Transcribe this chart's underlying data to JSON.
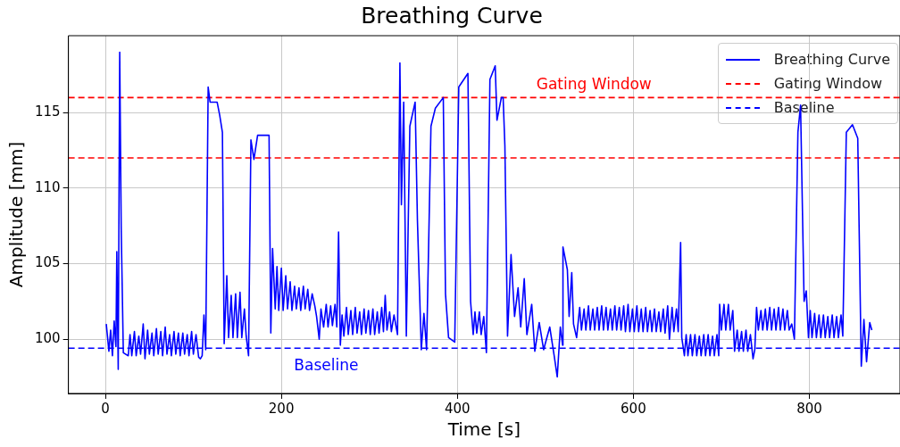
{
  "chart_data": {
    "type": "line",
    "title": "Breathing Curve",
    "xlabel": "Time [s]",
    "ylabel": "Amplitude [mm]",
    "xlim": [
      -42,
      903
    ],
    "ylim": [
      96.4,
      120.1
    ],
    "xticks": [
      0,
      200,
      400,
      600,
      800
    ],
    "yticks": [
      100,
      105,
      110,
      115
    ],
    "grid": true,
    "legend": "top right",
    "line_style": "solid",
    "series": [
      {
        "name": "Breathing Curve",
        "color": "#0000ff",
        "x": [
          1,
          4,
          6,
          8,
          10,
          12,
          13,
          14.6,
          16.3,
          18,
          20.4,
          26,
          28,
          30,
          33,
          35,
          38,
          40,
          43,
          45,
          48,
          50,
          53,
          55,
          58,
          60,
          63,
          65,
          68,
          70,
          73,
          75,
          78,
          80,
          83,
          85,
          88,
          90,
          93,
          95,
          98,
          100,
          103,
          106,
          108,
          110,
          112,
          114,
          116.8,
          119,
          127,
          130,
          133,
          135,
          138,
          140,
          143,
          145,
          148,
          150,
          153,
          155,
          158,
          160,
          162.7,
          165.4,
          168.8,
          173,
          186,
          188,
          190,
          193,
          195,
          197,
          200,
          202,
          205,
          207,
          210,
          212,
          215,
          217,
          220,
          222,
          225,
          227,
          230,
          232,
          235,
          238,
          240,
          243,
          245,
          248,
          251,
          253,
          256,
          258,
          261,
          263,
          265,
          267,
          269,
          271,
          274,
          276,
          279,
          281,
          284,
          286,
          289,
          291,
          294,
          296,
          299,
          301,
          304,
          306,
          309,
          311,
          314,
          316,
          318,
          320,
          323,
          325,
          328,
          332,
          334.7,
          336.4,
          339,
          342,
          346,
          352,
          354.6,
          359,
          362,
          365,
          370,
          375,
          384,
          386.5,
          390,
          397,
          401.6,
          412,
          415,
          418,
          420,
          422,
          425,
          427,
          430,
          433,
          437,
          443,
          445,
          450,
          452,
          454,
          457,
          461,
          465,
          469,
          472,
          476,
          479,
          484.5,
          488,
          493,
          498,
          505,
          510,
          513.5,
          517,
          519.6,
          520,
          525,
          527,
          530,
          532,
          535.5,
          539,
          541,
          544,
          546,
          549,
          551,
          554,
          556,
          559,
          561,
          564,
          566,
          569,
          571,
          574,
          576,
          579,
          581,
          584,
          586,
          589,
          591,
          594,
          596,
          599,
          601,
          604,
          606,
          609,
          611,
          614,
          616,
          619,
          621,
          624,
          626,
          629,
          631,
          634,
          636,
          639,
          641,
          644,
          646,
          649,
          651,
          653.7,
          655,
          658,
          660,
          662,
          665,
          667,
          670,
          672,
          675,
          677,
          680,
          682,
          685,
          687,
          690,
          692,
          695,
          697,
          698,
          700,
          703,
          705,
          708,
          710,
          713,
          715,
          718,
          720,
          723,
          725,
          728,
          730,
          733,
          736,
          738,
          740,
          742,
          745,
          747,
          750,
          752,
          755,
          757,
          760,
          762,
          765,
          767,
          770,
          772,
          775,
          777,
          780,
          783,
          787,
          790,
          794,
          796.5,
          799,
          801,
          803,
          806,
          808,
          811,
          813,
          816,
          818,
          821,
          823,
          826,
          828,
          831,
          833,
          836,
          838,
          842,
          849,
          855,
          859,
          862,
          865,
          868.6,
          871
        ],
        "values": [
          101.0,
          99.2,
          100.6,
          98.9,
          101.2,
          99.5,
          105.8,
          98.0,
          119.0,
          107.3,
          99.1,
          98.9,
          100.3,
          98.9,
          100.5,
          98.9,
          100.2,
          99.0,
          101.0,
          98.7,
          100.6,
          99.0,
          100.4,
          98.9,
          100.7,
          99.0,
          100.5,
          98.9,
          100.8,
          99.0,
          100.3,
          98.9,
          100.5,
          99.0,
          100.4,
          98.9,
          100.4,
          99.0,
          100.3,
          98.9,
          100.5,
          99.0,
          100.3,
          98.8,
          98.7,
          98.9,
          101.6,
          99.3,
          116.7,
          115.7,
          115.7,
          114.8,
          113.7,
          99.7,
          104.2,
          100.1,
          102.9,
          100.1,
          103.0,
          100.1,
          103.1,
          100.1,
          102.0,
          100.2,
          98.9,
          113.2,
          111.9,
          113.5,
          113.5,
          100.4,
          106.0,
          102.0,
          104.8,
          101.9,
          104.7,
          101.9,
          104.2,
          102.0,
          103.8,
          101.9,
          103.5,
          102.0,
          103.4,
          101.9,
          103.5,
          102.0,
          103.3,
          101.9,
          103.0,
          102.2,
          101.5,
          100.0,
          102.0,
          100.8,
          102.3,
          100.8,
          102.2,
          100.9,
          102.3,
          100.8,
          107.1,
          99.6,
          101.6,
          100.2,
          102.1,
          100.3,
          101.9,
          100.3,
          102.1,
          100.4,
          101.8,
          100.3,
          102.0,
          100.4,
          101.9,
          100.3,
          102.0,
          100.3,
          101.8,
          100.4,
          102.1,
          100.5,
          102.9,
          100.6,
          101.8,
          100.5,
          101.6,
          100.3,
          118.3,
          108.9,
          115.7,
          100.2,
          114.1,
          115.7,
          107.9,
          99.3,
          101.7,
          99.3,
          114.1,
          115.3,
          116.0,
          103.0,
          100.1,
          99.8,
          116.7,
          117.6,
          102.5,
          100.3,
          101.8,
          100.4,
          101.8,
          100.3,
          101.5,
          99.1,
          117.2,
          118.1,
          114.5,
          116.0,
          116.0,
          112.8,
          100.2,
          105.6,
          101.5,
          103.4,
          100.8,
          104.0,
          100.3,
          102.3,
          99.2,
          101.1,
          99.3,
          100.8,
          98.9,
          97.5,
          100.8,
          99.6,
          106.1,
          104.6,
          101.5,
          104.4,
          101.0,
          100.1,
          102.1,
          100.6,
          102.0,
          100.6,
          102.2,
          100.6,
          102.0,
          100.6,
          102.1,
          100.6,
          102.2,
          100.6,
          102.1,
          100.6,
          102.0,
          100.6,
          102.2,
          100.6,
          102.1,
          100.6,
          102.2,
          100.5,
          102.3,
          100.5,
          102.0,
          100.5,
          102.2,
          100.5,
          102.0,
          100.5,
          102.1,
          100.5,
          101.9,
          100.5,
          102.0,
          100.5,
          101.8,
          100.5,
          102.0,
          100.4,
          102.2,
          100.0,
          102.1,
          100.5,
          102.0,
          100.5,
          106.4,
          100.1,
          98.9,
          100.3,
          98.9,
          100.3,
          98.9,
          100.3,
          98.9,
          100.2,
          98.9,
          100.3,
          98.9,
          100.3,
          98.9,
          100.2,
          98.9,
          100.3,
          98.9,
          102.3,
          100.6,
          102.3,
          100.6,
          102.3,
          100.6,
          101.9,
          99.2,
          100.6,
          99.2,
          100.5,
          99.2,
          100.6,
          99.2,
          100.3,
          98.7,
          99.3,
          102.1,
          100.6,
          101.9,
          100.6,
          102.0,
          100.6,
          102.1,
          100.6,
          102.0,
          100.6,
          102.1,
          100.6,
          102.0,
          100.6,
          101.9,
          100.6,
          101.0,
          100.0,
          113.7,
          115.5,
          102.5,
          103.2,
          100.1,
          101.9,
          100.1,
          101.7,
          100.1,
          101.6,
          100.1,
          101.6,
          100.1,
          101.5,
          100.1,
          101.6,
          100.1,
          101.5,
          100.1,
          101.6,
          100.2,
          113.7,
          114.2,
          113.3,
          98.2,
          101.3,
          98.5,
          101.1,
          100.6
        ]
      }
    ],
    "ref_lines": [
      {
        "axis": "y",
        "value": 116,
        "label": "Gating Window",
        "color": "#ff0000",
        "line_style": "dashed"
      },
      {
        "axis": "y",
        "value": 112,
        "color": "#ff0000",
        "line_style": "dashed"
      },
      {
        "axis": "y",
        "value": 99.4,
        "label": "Baseline",
        "color": "#0000ff",
        "line_style": "dashed"
      }
    ]
  }
}
